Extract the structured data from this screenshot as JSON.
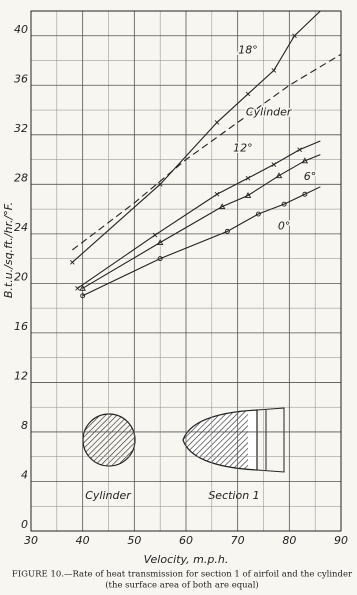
{
  "chart_data": {
    "type": "line",
    "y_label": "B.t.u./sq.ft./hr./°F.",
    "x_label": "Velocity, m.p.h.",
    "xlim": [
      30,
      90
    ],
    "xticks": [
      30,
      40,
      50,
      60,
      70,
      80,
      90
    ],
    "ylim": [
      0,
      42
    ],
    "yticks": [
      0,
      4,
      8,
      12,
      16,
      20,
      24,
      28,
      32,
      36,
      40
    ],
    "grid": true,
    "series": [
      {
        "name": "18°",
        "color": "#222",
        "marker": "x",
        "dash": false,
        "x": [
          38,
          55,
          66,
          72,
          77,
          81,
          86
        ],
        "values": [
          21.7,
          28,
          33,
          35.3,
          37.2,
          40,
          42
        ]
      },
      {
        "name": "Cylinder",
        "color": "#222",
        "marker": "none",
        "dash": true,
        "x": [
          38,
          50,
          60,
          70,
          80,
          90
        ],
        "values": [
          22.7,
          26.5,
          30,
          33,
          36,
          38.5
        ]
      },
      {
        "name": "12°",
        "color": "#222",
        "marker": "x",
        "dash": false,
        "x": [
          39,
          54,
          66,
          72,
          77,
          82,
          86
        ],
        "values": [
          19.6,
          23.9,
          27.2,
          28.5,
          29.6,
          30.8,
          31.5
        ]
      },
      {
        "name": "6°",
        "color": "#222",
        "marker": "triangle",
        "dash": false,
        "x": [
          40,
          55,
          67,
          72,
          78,
          83,
          86
        ],
        "values": [
          19.6,
          23.3,
          26.2,
          27.1,
          28.7,
          29.9,
          30.4
        ]
      },
      {
        "name": "0°",
        "color": "#222",
        "marker": "circle",
        "dash": false,
        "x": [
          40,
          55,
          68,
          74,
          79,
          83,
          86
        ],
        "values": [
          19,
          22,
          24.2,
          25.6,
          26.4,
          27.2,
          27.8
        ]
      }
    ],
    "inset_labels": [
      "Cylinder",
      "Section 1"
    ],
    "caption": [
      "FIGURE 10.—Rate of heat transmission for section 1 of airfoil and the cylinder",
      "(the surface area of both are equal)"
    ]
  }
}
